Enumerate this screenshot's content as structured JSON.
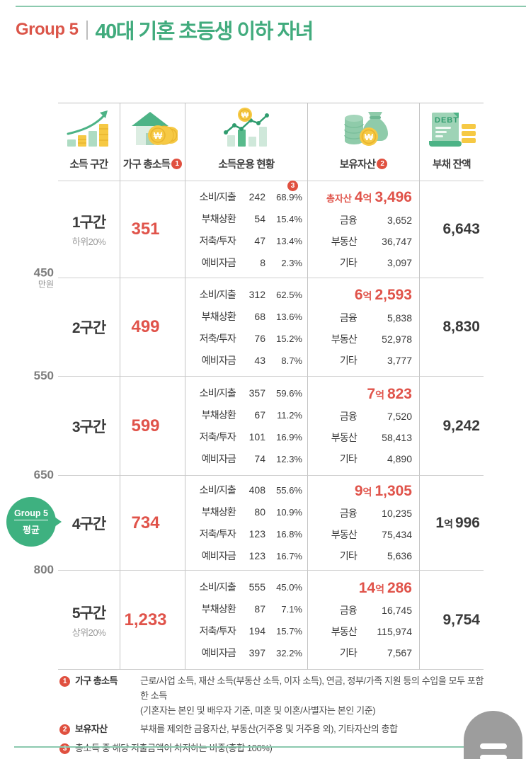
{
  "header": {
    "group_label": "Group 5",
    "title": "40대 기혼 초등생 이하 자녀"
  },
  "columns": [
    {
      "label": "소득 구간",
      "icon": "rising-bars-icon"
    },
    {
      "label": "가구 총소득",
      "marker": "1",
      "icon": "house-coins-icon"
    },
    {
      "label": "소득운용 현황",
      "icon": "chart-coin-icon"
    },
    {
      "label": "보유자산",
      "marker": "2",
      "icon": "coins-moneybag-icon"
    },
    {
      "label": "부채 잔액",
      "icon": "debt-scroll-icon"
    }
  ],
  "axis": {
    "labels": [
      {
        "value": "450",
        "unit": "만원"
      },
      {
        "value": "550"
      },
      {
        "value": "650"
      },
      {
        "value": "800"
      }
    ]
  },
  "badge": {
    "line1": "Group 5",
    "line2": "평균"
  },
  "rows": [
    {
      "bracket": "1구간",
      "bracket_sub": "하위20%",
      "income": "351",
      "usage": [
        {
          "label": "소비/지출",
          "value": "242",
          "pct": "68.9%",
          "marker": "3"
        },
        {
          "label": "부채상환",
          "value": "54",
          "pct": "15.4%"
        },
        {
          "label": "저축/투자",
          "value": "47",
          "pct": "13.4%"
        },
        {
          "label": "예비자금",
          "value": "8",
          "pct": "2.3%"
        }
      ],
      "assets": {
        "prefix": "총자산",
        "big1": "4",
        "unit": "억",
        "big2": "3,496",
        "items": [
          {
            "label": "금융",
            "value": "3,652"
          },
          {
            "label": "부동산",
            "value": "36,747"
          },
          {
            "label": "기타",
            "value": "3,097"
          }
        ]
      },
      "debt": {
        "value": "6,643"
      }
    },
    {
      "bracket": "2구간",
      "income": "499",
      "usage": [
        {
          "label": "소비/지출",
          "value": "312",
          "pct": "62.5%"
        },
        {
          "label": "부채상환",
          "value": "68",
          "pct": "13.6%"
        },
        {
          "label": "저축/투자",
          "value": "76",
          "pct": "15.2%"
        },
        {
          "label": "예비자금",
          "value": "43",
          "pct": "8.7%"
        }
      ],
      "assets": {
        "big1": "6",
        "unit": "억",
        "big2": "2,593",
        "items": [
          {
            "label": "금융",
            "value": "5,838"
          },
          {
            "label": "부동산",
            "value": "52,978"
          },
          {
            "label": "기타",
            "value": "3,777"
          }
        ]
      },
      "debt": {
        "value": "8,830"
      }
    },
    {
      "bracket": "3구간",
      "income": "599",
      "usage": [
        {
          "label": "소비/지출",
          "value": "357",
          "pct": "59.6%"
        },
        {
          "label": "부채상환",
          "value": "67",
          "pct": "11.2%"
        },
        {
          "label": "저축/투자",
          "value": "101",
          "pct": "16.9%"
        },
        {
          "label": "예비자금",
          "value": "74",
          "pct": "12.3%"
        }
      ],
      "assets": {
        "big1": "7",
        "unit": "억",
        "big2": "823",
        "items": [
          {
            "label": "금융",
            "value": "7,520"
          },
          {
            "label": "부동산",
            "value": "58,413"
          },
          {
            "label": "기타",
            "value": "4,890"
          }
        ]
      },
      "debt": {
        "value": "9,242"
      }
    },
    {
      "bracket": "4구간",
      "income": "734",
      "usage": [
        {
          "label": "소비/지출",
          "value": "408",
          "pct": "55.6%"
        },
        {
          "label": "부채상환",
          "value": "80",
          "pct": "10.9%"
        },
        {
          "label": "저축/투자",
          "value": "123",
          "pct": "16.8%"
        },
        {
          "label": "예비자금",
          "value": "123",
          "pct": "16.7%"
        }
      ],
      "assets": {
        "big1": "9",
        "unit": "억",
        "big2": "1,305",
        "items": [
          {
            "label": "금융",
            "value": "10,235"
          },
          {
            "label": "부동산",
            "value": "75,434"
          },
          {
            "label": "기타",
            "value": "5,636"
          }
        ]
      },
      "debt": {
        "big1": "1",
        "unit": "억",
        "big2": "996"
      }
    },
    {
      "bracket": "5구간",
      "bracket_sub": "상위20%",
      "income": "1,233",
      "usage": [
        {
          "label": "소비/지출",
          "value": "555",
          "pct": "45.0%"
        },
        {
          "label": "부채상환",
          "value": "87",
          "pct": "7.1%"
        },
        {
          "label": "저축/투자",
          "value": "194",
          "pct": "15.7%"
        },
        {
          "label": "예비자금",
          "value": "397",
          "pct": "32.2%"
        }
      ],
      "assets": {
        "big1": "14",
        "unit": "억",
        "big2": "286",
        "items": [
          {
            "label": "금융",
            "value": "16,745"
          },
          {
            "label": "부동산",
            "value": "115,974"
          },
          {
            "label": "기타",
            "value": "7,567"
          }
        ]
      },
      "debt": {
        "value": "9,754"
      }
    }
  ],
  "footnotes": [
    {
      "marker": "1",
      "term": "가구 총소득",
      "lines": [
        "근로/사업 소득, 재산 소득(부동산 소득, 이자 소득), 연금, 정부/가족 지원 등의 수입을 모두 포함한 소득",
        "(기혼자는 본인 및 배우자 기준, 미혼 및 이혼/사별자는 본인 기준)"
      ]
    },
    {
      "marker": "2",
      "term": "보유자산",
      "lines": [
        "부채를 제외한 금융자산, 부동산(거주용 및 거주용 외), 기타자산의 총합"
      ]
    },
    {
      "marker": "3",
      "term": "",
      "lines": [
        "총소득 중 해당 지출금액이 차지하는 비중(총합 100%)"
      ]
    }
  ],
  "colors": {
    "accent_red": "#e0534a",
    "title_green": "#41ab7d",
    "rule_teal": "#8bc9ae",
    "badge_green": "#3eb180",
    "icon_yellow": "#f6c944",
    "fab_gray": "#9d9d9d"
  },
  "chart_data": {
    "type": "table",
    "title": "Group 5 | 40대 기혼 초등생 이하 자녀",
    "unit": "만원",
    "columns": [
      "소득 구간",
      "가구 총소득",
      "소비/지출",
      "부채상환",
      "저축/투자",
      "예비자금",
      "총자산",
      "금융",
      "부동산",
      "기타",
      "부채 잔액"
    ],
    "income_axis_boundaries": [
      450,
      550,
      650,
      800
    ],
    "group_average_bracket": "4구간",
    "rows": [
      {
        "소득 구간": "1구간 (하위20%)",
        "가구 총소득": 351,
        "소비/지출": [
          242,
          68.9
        ],
        "부채상환": [
          54,
          15.4
        ],
        "저축/투자": [
          47,
          13.4
        ],
        "예비자금": [
          8,
          2.3
        ],
        "총자산": 43496,
        "금융": 3652,
        "부동산": 36747,
        "기타": 3097,
        "부채 잔액": 6643
      },
      {
        "소득 구간": "2구간",
        "가구 총소득": 499,
        "소비/지출": [
          312,
          62.5
        ],
        "부채상환": [
          68,
          13.6
        ],
        "저축/투자": [
          76,
          15.2
        ],
        "예비자금": [
          43,
          8.7
        ],
        "총자산": 62593,
        "금융": 5838,
        "부동산": 52978,
        "기타": 3777,
        "부채 잔액": 8830
      },
      {
        "소득 구간": "3구간",
        "가구 총소득": 599,
        "소비/지출": [
          357,
          59.6
        ],
        "부채상환": [
          67,
          11.2
        ],
        "저축/투자": [
          101,
          16.9
        ],
        "예비자금": [
          74,
          12.3
        ],
        "총자산": 70823,
        "금융": 7520,
        "부동산": 58413,
        "기타": 4890,
        "부채 잔액": 9242
      },
      {
        "소득 구간": "4구간 (Group 5 평균)",
        "가구 총소득": 734,
        "소비/지출": [
          408,
          55.6
        ],
        "부채상환": [
          80,
          10.9
        ],
        "저축/투자": [
          123,
          16.8
        ],
        "예비자금": [
          123,
          16.7
        ],
        "총자산": 91305,
        "금융": 10235,
        "부동산": 75434,
        "기타": 5636,
        "부채 잔액": 10996
      },
      {
        "소득 구간": "5구간 (상위20%)",
        "가구 총소득": 1233,
        "소비/지출": [
          555,
          45.0
        ],
        "부채상환": [
          87,
          7.1
        ],
        "저축/투자": [
          194,
          15.7
        ],
        "예비자금": [
          397,
          32.2
        ],
        "총자산": 140286,
        "금융": 16745,
        "부동산": 115974,
        "기타": 7567,
        "부채 잔액": 9754
      }
    ]
  }
}
